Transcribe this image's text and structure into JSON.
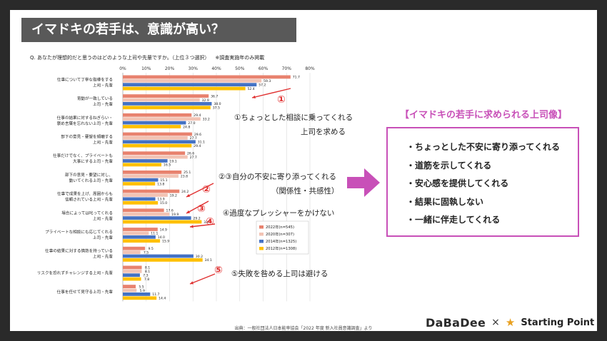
{
  "title": "イマドキの若手は、意識が高い？",
  "question": "Q.  あなたが理想的だと思うのはどのような上司や先輩ですか。（上位３つ選択）",
  "question_note": "※調査実施年のみ掲載",
  "source": "出典：一般社団法人日本能率協会「2022 年度 新入社員意識調査」より",
  "annotations": {
    "a1_num": "①",
    "a1_line1": "①ちょっとした相談に乗ってくれる",
    "a1_line2": "上司を求める",
    "a23_line1": "②③自分の不安に寄り添ってくれる",
    "a23_line2": "（関係性・共感性）",
    "a2_num": "②",
    "a3_num": "③",
    "a4_num": "④",
    "a4_text": "④過度なプレッシャーをかけない",
    "a5_num": "⑤",
    "a5_text": "⑤失敗を咎める上司は避ける"
  },
  "right_panel": {
    "title": "【イマドキの若手に求められる上司像】",
    "items": [
      "・ちょっとした不安に寄り添ってくれる",
      "・道筋を示してくれる",
      "・安心感を提供してくれる",
      "・結果に固執しない",
      "・一緒に伴走してくれる"
    ]
  },
  "logos": {
    "left": "DaBaDee",
    "cross": "×",
    "right": "Starting Point"
  },
  "colors": {
    "s2022": "#e8826e",
    "s2020": "#f2c3b4",
    "s2014": "#4472c4",
    "s2012": "#ffc000",
    "accent": "#c850b8",
    "red": "#e03030"
  },
  "chart_data": {
    "type": "bar",
    "orientation": "horizontal",
    "xlim": [
      0,
      80
    ],
    "xticks": [
      "0%",
      "10%",
      "20%",
      "30%",
      "40%",
      "50%",
      "60%",
      "70%",
      "80%"
    ],
    "grid": true,
    "legend_position": "inside-right",
    "categories": [
      [
        "仕事について丁寧な指導をする",
        "上司・先輩"
      ],
      [
        "育動が一致している",
        "上司・先輩"
      ],
      [
        "仕事の結果に対するねぎらい・",
        "褒め言葉を忘れない上司・先輩"
      ],
      [
        "部下の意見・要望を傾聴する",
        "上司・先輩"
      ],
      [
        "仕事だけでなく、プライベートも",
        "大事にする上司・先輩"
      ],
      [
        "部下の意見・要望に対し、",
        "動いてくれる上司・先輩"
      ],
      [
        "仕事で成果を上げ、周囲からも",
        "信頼されている上司・先輩"
      ],
      [
        "場合によっては叱ってくれる",
        "上司・先輩"
      ],
      [
        "プライベートな相談にも応じてくれる",
        "上司・先輩"
      ],
      [
        "仕事の結果に対する情熱を持っている",
        "上司・先輩"
      ],
      [
        "リスクを恐れずチャレンジする上司・先輩"
      ],
      [
        "仕事を任せて見守る上司・先輩"
      ]
    ],
    "series": [
      {
        "name": "2022年(n=545)",
        "values": [
          71.7,
          36.7,
          29.4,
          29.6,
          26.6,
          25.1,
          24.2,
          17.6,
          14.9,
          9.5,
          8.1,
          5.5
        ]
      },
      {
        "name": "2020年(n=307)",
        "values": [
          59.3,
          32.9,
          33.2,
          27.7,
          27.7,
          23.8,
          19.2,
          19.9,
          11.1,
          7.5,
          8.1,
          5.9
        ]
      },
      {
        "name": "2014年(n=1325)",
        "values": [
          57.2,
          38.0,
          27.0,
          31.1,
          19.1,
          15.1,
          13.9,
          29.2,
          14.0,
          30.2,
          7.3,
          11.7
        ]
      },
      {
        "name": "2012年(n=1308)",
        "values": [
          52.4,
          37.5,
          24.8,
          29.4,
          16.5,
          13.8,
          15.0,
          33.7,
          15.9,
          34.1,
          7.8,
          14.4
        ]
      }
    ]
  }
}
